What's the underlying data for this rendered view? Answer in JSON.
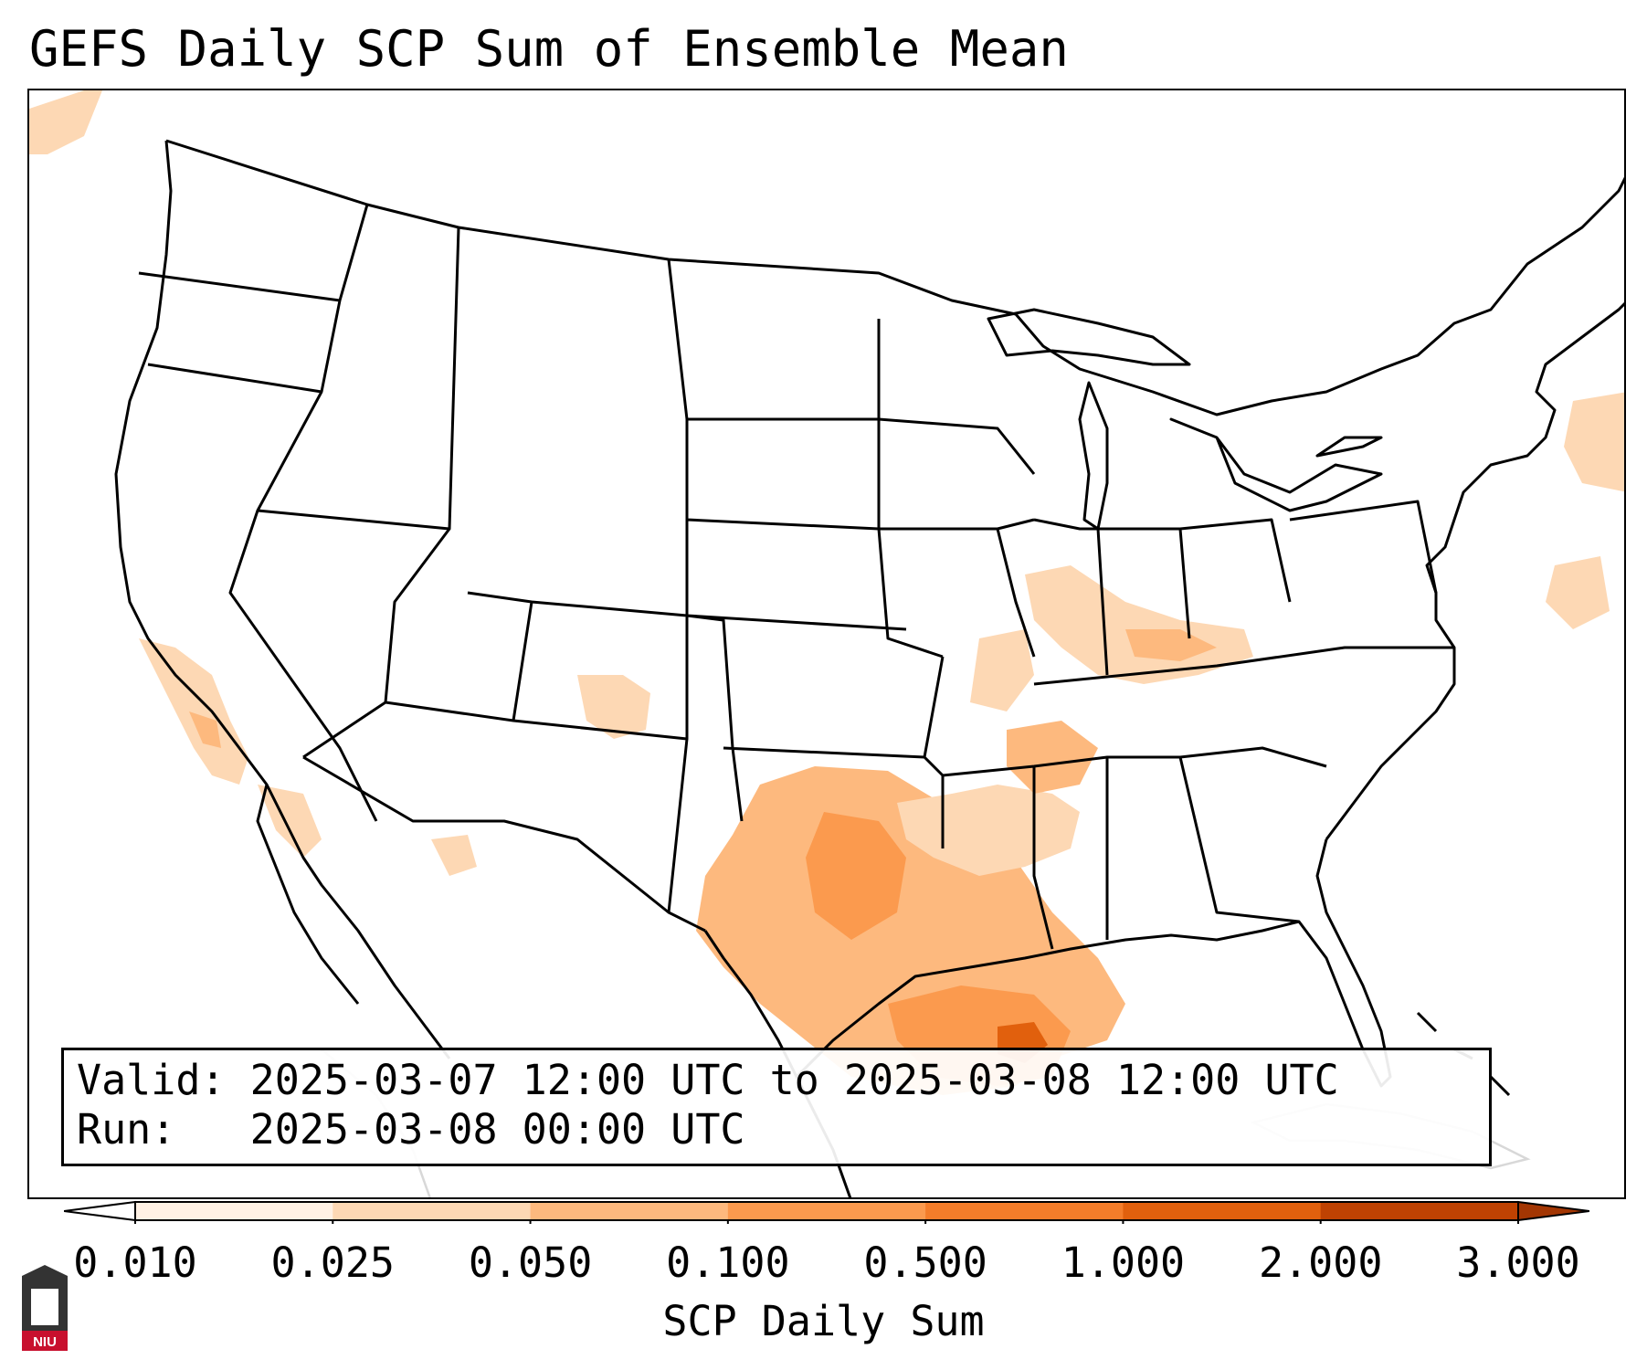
{
  "title": "GEFS Daily SCP Sum of Ensemble Mean",
  "info": {
    "valid_label": "Valid:",
    "valid_value": "2025-03-07 12:00 UTC to 2025-03-08 12:00 UTC",
    "run_label": "Run:",
    "run_value": "2025-03-08 00:00 UTC"
  },
  "colorbar": {
    "label": "SCP Daily Sum",
    "ticks": [
      "0.010",
      "0.025",
      "0.050",
      "0.100",
      "0.500",
      "1.000",
      "2.000",
      "3.000"
    ],
    "colors": [
      "#fff1e4",
      "#fdd8b4",
      "#fdb97e",
      "#fb9a4e",
      "#f47d2a",
      "#e1600d",
      "#bf4202"
    ],
    "extend_low_color": "#ffffff",
    "extend_high_color": "#a33603"
  },
  "map": {
    "region": "CONUS",
    "field": "SCP daily sum",
    "notable_areas": [
      "Texas",
      "Louisiana",
      "Gulf of Mexico",
      "Ohio Valley",
      "Southern California",
      "New Mexico"
    ]
  },
  "logo_text": "NIU"
}
